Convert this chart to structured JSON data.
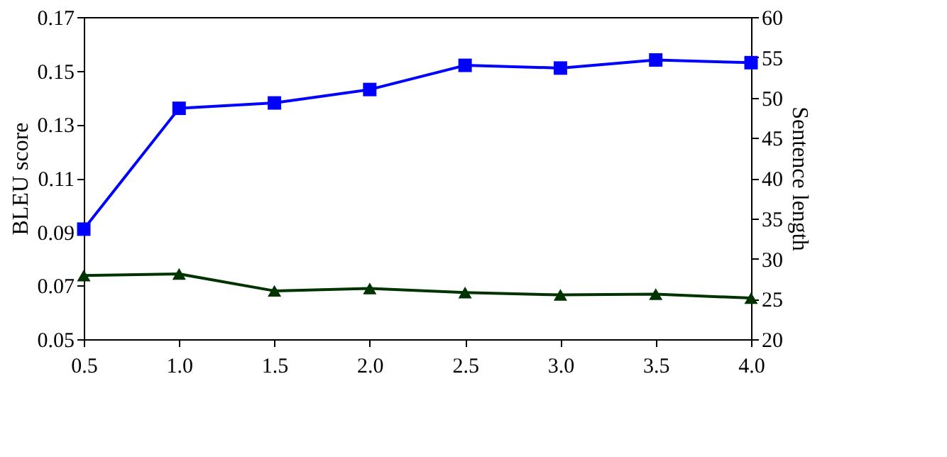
{
  "chart_data": {
    "type": "line",
    "ylabel": "BLEU score",
    "y2label": "Sentence length",
    "x": [
      0.5,
      1.0,
      1.5,
      2.0,
      2.5,
      3.0,
      3.5,
      4.0
    ],
    "series": [
      {
        "color": "#0000ff",
        "marker": "square",
        "values": [
          0.091,
          0.136,
          0.138,
          0.143,
          0.152,
          0.151,
          0.154,
          0.153
        ]
      },
      {
        "color": "#003300",
        "marker": "triangle",
        "axis": "y2",
        "values": [
          27.9,
          28.1,
          26.0,
          26.3,
          25.8,
          25.5,
          25.6,
          25.1
        ]
      }
    ],
    "xlim": [
      0.5,
      4.0
    ],
    "xticks": [
      {
        "value": 0.5,
        "label": "0.5"
      },
      {
        "value": 1.0,
        "label": "1.0"
      },
      {
        "value": 1.5,
        "label": "1.5"
      },
      {
        "value": 2.0,
        "label": "2.0"
      },
      {
        "value": 2.5,
        "label": "2.5"
      },
      {
        "value": 3.0,
        "label": "3.0"
      },
      {
        "value": 3.5,
        "label": "3.5"
      },
      {
        "value": 4.0,
        "label": "4.0"
      }
    ],
    "ylim": [
      0.05,
      0.17
    ],
    "yticks": [
      0.05,
      0.07,
      0.09,
      0.11,
      0.13,
      0.15,
      0.17
    ],
    "y2lim": [
      20,
      60
    ],
    "y2ticks": [
      20,
      25,
      30,
      35,
      40,
      45,
      50,
      55,
      60
    ],
    "grid": false
  }
}
